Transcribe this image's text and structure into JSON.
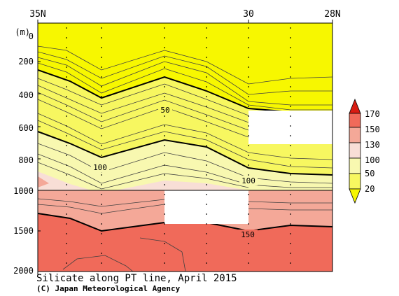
{
  "chart_data": {
    "type": "contour",
    "title": "Silicate along PT line, April 2015",
    "credit": "(C) Japan Meteorological Agency",
    "ylabel": "(m)",
    "x_ticks": [
      "35N",
      "30",
      "28N"
    ],
    "y_ticks_upper": [
      "0",
      "200",
      "400",
      "600",
      "800",
      "1000"
    ],
    "y_ticks_lower": [
      "1500",
      "2000"
    ],
    "depth_upper_range": [
      0,
      1000
    ],
    "depth_lower_range": [
      1000,
      2000
    ],
    "colorbar": {
      "levels": [
        20,
        50,
        100,
        130,
        150,
        170
      ],
      "labels": [
        "20",
        "50",
        "100",
        "130",
        "150",
        "170"
      ],
      "colors": [
        "#f7f700",
        "#f7f760",
        "#f8f8b0",
        "#f8ded6",
        "#f4a898",
        "#f06a5a",
        "#d81c12"
      ]
    },
    "contour_labels": [
      {
        "text": "50",
        "value": 50
      },
      {
        "text": "100",
        "value": 100
      },
      {
        "text": "100",
        "value": 100
      },
      {
        "text": "150",
        "value": 150
      }
    ],
    "missing_regions": 2
  }
}
